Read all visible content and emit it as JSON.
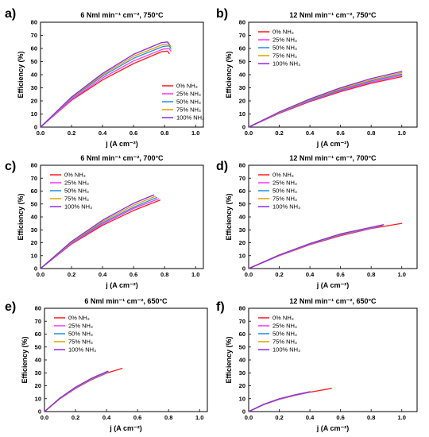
{
  "figure": {
    "colors": {
      "0% NH3": "#ff1a1a",
      "25% NH3": "#ff33ff",
      "50% NH3": "#1f8fe0",
      "75% NH3": "#e0a000",
      "100% NH3": "#8a2be2"
    }
  },
  "chart_data": [
    {
      "panel": "a)",
      "type": "line",
      "title": "6 Nml  min⁻¹ cm⁻², 750°C",
      "xlabel": "j (A cm⁻²)",
      "ylabel": "Efficiency (%)",
      "xlim": [
        0.0,
        1.05
      ],
      "ylim": [
        0,
        80
      ],
      "xticks": [
        "0.0",
        "0.2",
        "0.4",
        "0.6",
        "0.8",
        "1.0"
      ],
      "yticks": [
        "0",
        "10",
        "20",
        "30",
        "40",
        "50",
        "60",
        "70",
        "80"
      ],
      "legend_position": "bottom-right",
      "series": [
        {
          "name": "0% NH₃",
          "points": [
            [
              0,
              0
            ],
            [
              0.2,
              20.5
            ],
            [
              0.4,
              36
            ],
            [
              0.6,
              48.5
            ],
            [
              0.78,
              57.5
            ],
            [
              0.82,
              58
            ],
            [
              0.83,
              56
            ]
          ]
        },
        {
          "name": "25% NH₃",
          "points": [
            [
              0,
              0
            ],
            [
              0.2,
              21
            ],
            [
              0.4,
              37.5
            ],
            [
              0.6,
              50.5
            ],
            [
              0.79,
              59.5
            ],
            [
              0.83,
              60
            ],
            [
              0.84,
              58
            ]
          ]
        },
        {
          "name": "50% NH₃",
          "points": [
            [
              0,
              0
            ],
            [
              0.2,
              22
            ],
            [
              0.4,
              39
            ],
            [
              0.6,
              52.5
            ],
            [
              0.79,
              61.5
            ],
            [
              0.83,
              62
            ],
            [
              0.84,
              60
            ]
          ]
        },
        {
          "name": "75% NH₃",
          "points": [
            [
              0,
              0
            ],
            [
              0.2,
              22.5
            ],
            [
              0.4,
              40
            ],
            [
              0.6,
              54
            ],
            [
              0.79,
              63
            ],
            [
              0.83,
              63.5
            ],
            [
              0.84,
              61.5
            ]
          ]
        },
        {
          "name": "100% NH₃",
          "points": [
            [
              0,
              0
            ],
            [
              0.2,
              23
            ],
            [
              0.4,
              41
            ],
            [
              0.6,
              55.5
            ],
            [
              0.78,
              64.5
            ],
            [
              0.82,
              65
            ],
            [
              0.83,
              63
            ]
          ]
        }
      ]
    },
    {
      "panel": "b)",
      "type": "line",
      "title": "12 Nml  min⁻¹ cm⁻², 750°C",
      "xlabel": "j (A cm⁻²)",
      "ylabel": "Efficiency (%)",
      "xlim": [
        0.0,
        1.1
      ],
      "ylim": [
        0,
        80
      ],
      "xticks": [
        "0.0",
        "0.2",
        "0.4",
        "0.6",
        "0.8",
        "1.0"
      ],
      "yticks": [
        "0",
        "10",
        "20",
        "30",
        "40",
        "50",
        "60",
        "70",
        "80"
      ],
      "legend_position": "top-left",
      "series": [
        {
          "name": "0% NH₃",
          "points": [
            [
              0,
              0
            ],
            [
              0.2,
              10.5
            ],
            [
              0.4,
              19.5
            ],
            [
              0.6,
              27
            ],
            [
              0.8,
              33.5
            ],
            [
              1.0,
              38.5
            ]
          ]
        },
        {
          "name": "25% NH₃",
          "points": [
            [
              0,
              0
            ],
            [
              0.2,
              10.8
            ],
            [
              0.4,
              20
            ],
            [
              0.6,
              27.8
            ],
            [
              0.8,
              34.3
            ],
            [
              1.0,
              39.5
            ]
          ]
        },
        {
          "name": "50% NH₃",
          "points": [
            [
              0,
              0
            ],
            [
              0.2,
              11
            ],
            [
              0.4,
              20.5
            ],
            [
              0.6,
              28.5
            ],
            [
              0.8,
              35.2
            ],
            [
              1.0,
              40.5
            ]
          ]
        },
        {
          "name": "75% NH₃",
          "points": [
            [
              0,
              0
            ],
            [
              0.2,
              11.3
            ],
            [
              0.4,
              21
            ],
            [
              0.6,
              29.2
            ],
            [
              0.8,
              36
            ],
            [
              1.0,
              41.5
            ]
          ]
        },
        {
          "name": "100% NH₃",
          "points": [
            [
              0,
              0
            ],
            [
              0.2,
              11.6
            ],
            [
              0.4,
              21.5
            ],
            [
              0.6,
              30
            ],
            [
              0.8,
              37
            ],
            [
              1.0,
              42.5
            ]
          ]
        }
      ]
    },
    {
      "panel": "c)",
      "type": "line",
      "title": "6 Nml  min⁻¹ cm⁻², 700°C",
      "xlabel": "j (A cm⁻²)",
      "ylabel": "Efficiency (%)",
      "xlim": [
        0.0,
        1.05
      ],
      "ylim": [
        0,
        80
      ],
      "xticks": [
        "0.0",
        "0.2",
        "0.4",
        "0.6",
        "0.8",
        "1.0"
      ],
      "yticks": [
        "0",
        "10",
        "20",
        "30",
        "40",
        "50",
        "60",
        "70",
        "80"
      ],
      "legend_position": "top-left",
      "series": [
        {
          "name": "0% NH₃",
          "points": [
            [
              0,
              0
            ],
            [
              0.2,
              19
            ],
            [
              0.4,
              33.5
            ],
            [
              0.6,
              45
            ],
            [
              0.77,
              53
            ]
          ]
        },
        {
          "name": "25% NH₃",
          "points": [
            [
              0,
              0
            ],
            [
              0.2,
              19.5
            ],
            [
              0.4,
              34.5
            ],
            [
              0.6,
              46.5
            ],
            [
              0.76,
              54
            ]
          ]
        },
        {
          "name": "50% NH₃",
          "points": [
            [
              0,
              0
            ],
            [
              0.2,
              20
            ],
            [
              0.4,
              35.5
            ],
            [
              0.6,
              47.5
            ],
            [
              0.75,
              55
            ]
          ]
        },
        {
          "name": "75% NH₃",
          "points": [
            [
              0,
              0
            ],
            [
              0.2,
              20.5
            ],
            [
              0.4,
              36.5
            ],
            [
              0.6,
              49
            ],
            [
              0.74,
              56
            ]
          ]
        },
        {
          "name": "100% NH₃",
          "points": [
            [
              0,
              0
            ],
            [
              0.2,
              21
            ],
            [
              0.4,
              37.5
            ],
            [
              0.6,
              50.5
            ],
            [
              0.73,
              57
            ]
          ]
        }
      ]
    },
    {
      "panel": "d)",
      "type": "line",
      "title": "12 Nml  min⁻¹ cm⁻², 700°C",
      "xlabel": "j (A cm⁻²)",
      "ylabel": "Efficiency (%)",
      "xlim": [
        0.0,
        1.1
      ],
      "ylim": [
        0,
        80
      ],
      "xticks": [
        "0.0",
        "0.2",
        "0.4",
        "0.6",
        "0.8",
        "1.0"
      ],
      "yticks": [
        "0",
        "10",
        "20",
        "30",
        "40",
        "50",
        "60",
        "70",
        "80"
      ],
      "legend_position": "top-left",
      "series": [
        {
          "name": "0% NH₃",
          "points": [
            [
              0,
              0
            ],
            [
              0.2,
              10
            ],
            [
              0.4,
              18.5
            ],
            [
              0.6,
              25.5
            ],
            [
              0.8,
              31
            ],
            [
              1.0,
              35
            ]
          ]
        },
        {
          "name": "25% NH₃",
          "points": [
            [
              0,
              0
            ],
            [
              0.2,
              10.2
            ],
            [
              0.4,
              18.8
            ],
            [
              0.6,
              25.9
            ],
            [
              0.87,
              33
            ]
          ]
        },
        {
          "name": "50% NH₃",
          "points": [
            [
              0,
              0
            ],
            [
              0.2,
              10.3
            ],
            [
              0.4,
              19
            ],
            [
              0.6,
              26.2
            ],
            [
              0.87,
              33.3
            ]
          ]
        },
        {
          "name": "75% NH₃",
          "points": [
            [
              0,
              0
            ],
            [
              0.2,
              10.4
            ],
            [
              0.4,
              19.2
            ],
            [
              0.6,
              26.5
            ],
            [
              0.88,
              33.8
            ]
          ]
        },
        {
          "name": "100% NH₃",
          "points": [
            [
              0,
              0
            ],
            [
              0.2,
              10.5
            ],
            [
              0.4,
              19.4
            ],
            [
              0.6,
              26.8
            ],
            [
              0.88,
              34
            ]
          ]
        }
      ]
    },
    {
      "panel": "e)",
      "type": "line",
      "title": "6 Nml  min⁻¹ cm⁻², 650°C",
      "xlabel": "j (A cm⁻²)",
      "ylabel": "Efficiency (%)",
      "xlim": [
        0.0,
        1.05
      ],
      "ylim": [
        0,
        80
      ],
      "xticks": [
        "0.0",
        "0.2",
        "0.4",
        "0.6",
        "0.8",
        "1.0"
      ],
      "yticks": [
        "0",
        "10",
        "20",
        "30",
        "40",
        "50",
        "60",
        "70",
        "80"
      ],
      "legend_position": "top-left",
      "series": [
        {
          "name": "0% NH₃",
          "points": [
            [
              0,
              0
            ],
            [
              0.1,
              10
            ],
            [
              0.2,
              18
            ],
            [
              0.3,
              24.5
            ],
            [
              0.4,
              29.8
            ],
            [
              0.5,
              33.5
            ]
          ]
        },
        {
          "name": "25% NH₃",
          "points": [
            [
              0,
              0
            ],
            [
              0.1,
              10.2
            ],
            [
              0.2,
              18.3
            ],
            [
              0.3,
              24.8
            ],
            [
              0.4,
              30
            ],
            [
              0.41,
              30.4
            ]
          ]
        },
        {
          "name": "50% NH₃",
          "points": [
            [
              0,
              0
            ],
            [
              0.1,
              10.3
            ],
            [
              0.2,
              18.5
            ],
            [
              0.3,
              25
            ],
            [
              0.4,
              30.3
            ],
            [
              0.41,
              30.7
            ]
          ]
        },
        {
          "name": "75% NH₃",
          "points": [
            [
              0,
              0
            ],
            [
              0.1,
              10.4
            ],
            [
              0.2,
              18.7
            ],
            [
              0.3,
              25.3
            ],
            [
              0.4,
              30.6
            ],
            [
              0.41,
              31
            ]
          ]
        },
        {
          "name": "100% NH₃",
          "points": [
            [
              0,
              0
            ],
            [
              0.1,
              10.5
            ],
            [
              0.2,
              18.9
            ],
            [
              0.3,
              25.6
            ],
            [
              0.4,
              30.9
            ],
            [
              0.41,
              31.2
            ]
          ]
        }
      ]
    },
    {
      "panel": "f)",
      "type": "line",
      "title": "12 Nml  min⁻¹ cm⁻², 650°C",
      "xlabel": "j (A cm⁻²)",
      "ylabel": "Efficiency (%)",
      "xlim": [
        0.0,
        1.1
      ],
      "ylim": [
        0,
        80
      ],
      "xticks": [
        "0.0",
        "0.2",
        "0.4",
        "0.6",
        "0.8",
        "1.0"
      ],
      "yticks": [
        "0",
        "10",
        "20",
        "30",
        "40",
        "50",
        "60",
        "70",
        "80"
      ],
      "legend_position": "top-left",
      "series": [
        {
          "name": "0% NH₃",
          "points": [
            [
              0,
              0
            ],
            [
              0.1,
              5.5
            ],
            [
              0.2,
              9.5
            ],
            [
              0.3,
              12.5
            ],
            [
              0.4,
              15
            ],
            [
              0.54,
              18
            ]
          ]
        },
        {
          "name": "25% NH₃",
          "points": [
            [
              0,
              0
            ],
            [
              0.1,
              5.6
            ],
            [
              0.2,
              9.6
            ],
            [
              0.3,
              12.6
            ],
            [
              0.4,
              15.1
            ]
          ]
        },
        {
          "name": "50% NH₃",
          "points": [
            [
              0,
              0
            ],
            [
              0.1,
              5.6
            ],
            [
              0.2,
              9.7
            ],
            [
              0.3,
              12.7
            ],
            [
              0.4,
              15.2
            ]
          ]
        },
        {
          "name": "75% NH₃",
          "points": [
            [
              0,
              0
            ],
            [
              0.1,
              5.7
            ],
            [
              0.2,
              9.8
            ],
            [
              0.3,
              12.8
            ],
            [
              0.4,
              15.3
            ]
          ]
        },
        {
          "name": "100% NH₃",
          "points": [
            [
              0,
              0
            ],
            [
              0.1,
              5.7
            ],
            [
              0.2,
              9.9
            ],
            [
              0.3,
              12.9
            ],
            [
              0.4,
              15.4
            ]
          ]
        }
      ]
    }
  ]
}
